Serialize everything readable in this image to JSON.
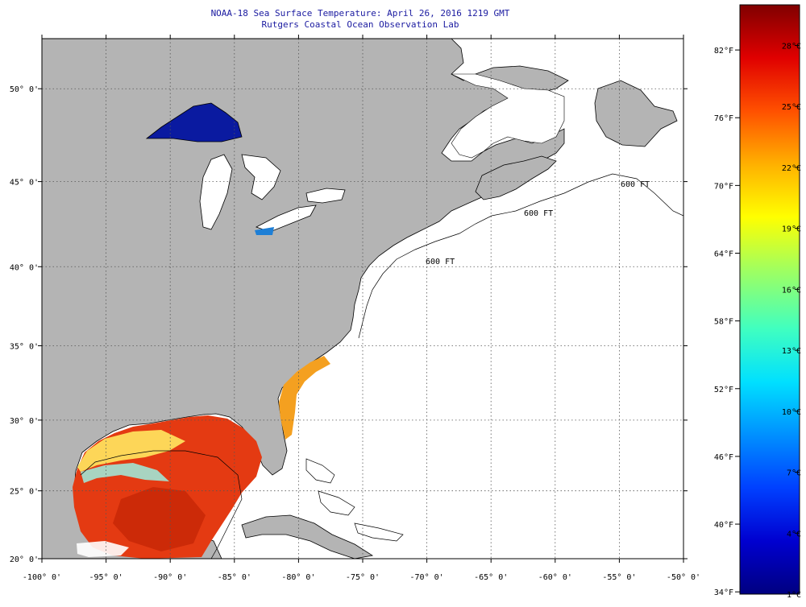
{
  "header": {
    "title_line1": "NOAA-18 Sea Surface Temperature:  April 26, 2016 1219 GMT",
    "title_line2": "Rutgers Coastal Ocean Observation Lab"
  },
  "map": {
    "lon_labels": [
      "-100° 0'",
      "-95° 0'",
      "-90° 0'",
      "-85° 0'",
      "-80° 0'",
      "-75° 0'",
      "-70° 0'",
      "-65° 0'",
      "-60° 0'",
      "-55° 0'",
      "-50° 0'"
    ],
    "lat_labels": [
      "50° 0'",
      "45° 0'",
      "40° 0'",
      "35° 0'",
      "30° 0'",
      "25° 0'",
      "20° 0'"
    ],
    "lon_values": [
      -100,
      -95,
      -90,
      -85,
      -80,
      -75,
      -70,
      -65,
      -60,
      -55,
      -50
    ],
    "lat_values": [
      50,
      45,
      40,
      35,
      30,
      25,
      20
    ],
    "lon_range": [
      -100,
      -50
    ],
    "lat_range": [
      20,
      52.5
    ],
    "grid": "dotted",
    "contour_labels": [
      "600 FT",
      "600 FT",
      "600 FT"
    ],
    "colors": {
      "land": "#b4b4b4",
      "ocean_no_data": "#ffffff",
      "lake_superior": "#0a1aa0",
      "gulf_warm": "#e43a12"
    }
  },
  "colorbar": {
    "fahrenheit_labels": [
      "82°F",
      "76°F",
      "70°F",
      "64°F",
      "58°F",
      "52°F",
      "46°F",
      "40°F",
      "34°F"
    ],
    "celsius_labels": [
      "28°C",
      "25°C",
      "22°C",
      "19°C",
      "16°C",
      "13°C",
      "10°C",
      "7°C",
      "4°C",
      "1°C"
    ],
    "fahrenheit_values": [
      82,
      76,
      70,
      64,
      58,
      52,
      46,
      40,
      34
    ],
    "celsius_values": [
      28,
      25,
      22,
      19,
      16,
      13,
      10,
      7,
      4,
      1
    ],
    "range_celsius": [
      1,
      30
    ],
    "gradient": [
      "#000080",
      "#0000d0",
      "#0040ff",
      "#0090ff",
      "#00e0ff",
      "#40ffc0",
      "#a0ff60",
      "#ffff00",
      "#ffb000",
      "#ff5000",
      "#e00000",
      "#800000"
    ]
  }
}
